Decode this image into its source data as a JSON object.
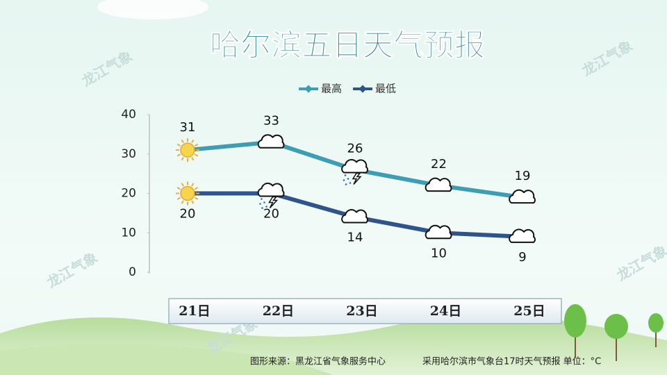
{
  "chart_data": {
    "type": "line",
    "title": "哈尔滨五日天气预报",
    "categories": [
      "21日",
      "22日",
      "23日",
      "24日",
      "25日"
    ],
    "series": [
      {
        "name": "最高",
        "color": "#3d9db3",
        "values": [
          31,
          33,
          26,
          22,
          19
        ]
      },
      {
        "name": "最低",
        "color": "#2f5489",
        "values": [
          20,
          20,
          14,
          10,
          9
        ]
      }
    ],
    "ylim": [
      0,
      40
    ],
    "yticks": [
      0,
      10,
      20,
      30,
      40
    ],
    "grid": false,
    "legend": "top",
    "watermark": "龙江气象",
    "source": "图形来源：黑龙江省气象服务中心",
    "note": "采用哈尔滨市气象台17时天气预报 单位：°C"
  }
}
